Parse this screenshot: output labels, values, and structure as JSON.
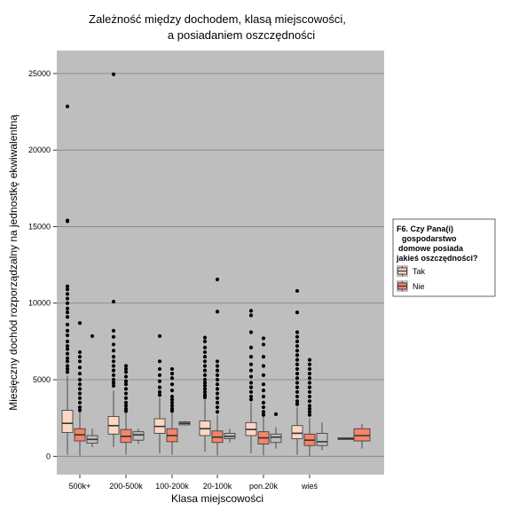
{
  "chart_data": {
    "type": "boxplot",
    "title_lines": [
      "Zależność między dochodem, klasą miejscowości,",
      "a posiadaniem oszczędności"
    ],
    "xlabel": "Klasa miejscowości",
    "ylabel": "Miesięczny dochód rozporządzalny na jednostkę ekwiwalentną",
    "ylim": [
      -1200,
      26500
    ],
    "yticks": [
      0,
      5000,
      10000,
      15000,
      20000,
      25000
    ],
    "categories": [
      "500k+",
      "200-500k",
      "100-200k",
      "20-100k",
      "pon.20k",
      "wieś",
      ""
    ],
    "legend": {
      "title_lines": [
        "F6. Czy Pana(i)",
        "gospodarstwo",
        "domowe posiada",
        "jakieś oszczędności?"
      ],
      "position": "right"
    },
    "series": [
      {
        "name": "Tak",
        "color": "#fcd7c6",
        "boxes": [
          {
            "category": "500k+",
            "q1": 1550,
            "median": 2150,
            "q3": 3000,
            "whisker_low": 100,
            "whisker_high": 5250,
            "outliers": [
              22850,
              15400,
              15350,
              11100,
              10900,
              10600,
              10300,
              10000,
              9650,
              9400,
              9100,
              8600,
              8200,
              7900,
              7500,
              7200,
              7000,
              6700,
              6400,
              6200,
              5900,
              5700,
              5500
            ]
          },
          {
            "category": "200-500k",
            "q1": 1450,
            "median": 2000,
            "q3": 2600,
            "whisker_low": 600,
            "whisker_high": 4300,
            "outliers": [
              24950,
              10100,
              8200,
              7800,
              7300,
              6900,
              6500,
              6200,
              5900,
              5600,
              5300,
              5000,
              4800,
              4600
            ]
          },
          {
            "category": "100-200k",
            "q1": 1500,
            "median": 1950,
            "q3": 2450,
            "whisker_low": 200,
            "whisker_high": 3800,
            "outliers": [
              7850,
              6200,
              5700,
              5300,
              4900,
              4500,
              4200,
              4000
            ]
          },
          {
            "category": "20-100k",
            "q1": 1350,
            "median": 1800,
            "q3": 2300,
            "whisker_low": 300,
            "whisker_high": 3700,
            "outliers": [
              7750,
              7500,
              7100,
              6800,
              6500,
              6200,
              5900,
              5600,
              5300,
              5000,
              4800,
              4600,
              4400,
              4200,
              4000,
              3850
            ]
          },
          {
            "category": "pon.20k",
            "q1": 1350,
            "median": 1750,
            "q3": 2200,
            "whisker_low": 200,
            "whisker_high": 3500,
            "outliers": [
              9500,
              9200,
              8100,
              7100,
              6500,
              6000,
              5600,
              5200,
              4800,
              4500,
              4200,
              3900,
              3700
            ]
          },
          {
            "category": "wieś",
            "q1": 1150,
            "median": 1500,
            "q3": 2000,
            "whisker_low": 100,
            "whisker_high": 3200,
            "outliers": [
              10800,
              9400,
              8100,
              7800,
              7500,
              7200,
              6900,
              6600,
              6300,
              6000,
              5700,
              5400,
              5100,
              4800,
              4500,
              4200,
              3900,
              3600,
              3400
            ]
          },
          {
            "category": "",
            "q1": 1100,
            "median": 1150,
            "q3": 1200,
            "whisker_low": 1100,
            "whisker_high": 1200,
            "outliers": []
          }
        ]
      },
      {
        "name": "Nie",
        "color": "#f4846a",
        "boxes": [
          {
            "category": "500k+",
            "q1": 1000,
            "median": 1400,
            "q3": 1800,
            "whisker_low": 50,
            "whisker_high": 2900,
            "outliers": [
              8700,
              6800,
              6500,
              6200,
              5800,
              5400,
              5000,
              4700,
              4400,
              4100,
              3800,
              3500,
              3200,
              3000
            ]
          },
          {
            "category": "200-500k",
            "q1": 900,
            "median": 1300,
            "q3": 1750,
            "whisker_low": 100,
            "whisker_high": 2850,
            "outliers": [
              5900,
              5700,
              5500,
              5200,
              4900,
              4700,
              4400,
              4100,
              3800,
              3500,
              3300,
              3100,
              2950
            ]
          },
          {
            "category": "100-200k",
            "q1": 950,
            "median": 1350,
            "q3": 1800,
            "whisker_low": 100,
            "whisker_high": 2800,
            "outliers": [
              5700,
              5400,
              5100,
              4700,
              4300,
              3900,
              3700,
              3500,
              3300,
              3100,
              2950
            ]
          },
          {
            "category": "20-100k",
            "q1": 900,
            "median": 1250,
            "q3": 1650,
            "whisker_low": 50,
            "whisker_high": 2700,
            "outliers": [
              11550,
              9450,
              6200,
              5900,
              5600,
              5300,
              5000,
              4700,
              4400,
              4100,
              3800,
              3500,
              3200,
              2900
            ]
          },
          {
            "category": "pon.20k",
            "q1": 800,
            "median": 1200,
            "q3": 1600,
            "whisker_low": 50,
            "whisker_high": 2600,
            "outliers": [
              7700,
              7300,
              6500,
              5900,
              5300,
              4700,
              4300,
              3900,
              3500,
              3200,
              2900,
              2700
            ]
          },
          {
            "category": "wieś",
            "q1": 700,
            "median": 1050,
            "q3": 1450,
            "whisker_low": 0,
            "whisker_high": 2500,
            "outliers": [
              6300,
              6000,
              5700,
              5400,
              5100,
              4800,
              4500,
              4200,
              3900,
              3600,
              3300,
              3100,
              2900,
              2700
            ]
          },
          {
            "category": "",
            "q1": 1000,
            "median": 1350,
            "q3": 1800,
            "whisker_low": 500,
            "whisker_high": 2100,
            "outliers": []
          }
        ]
      },
      {
        "name": "",
        "color": "#bfbfbf",
        "boxes": [
          {
            "category": "500k+",
            "q1": 850,
            "median": 1100,
            "q3": 1350,
            "whisker_low": 600,
            "whisker_high": 1800,
            "outliers": [
              7850
            ]
          },
          {
            "category": "200-500k",
            "q1": 1050,
            "median": 1400,
            "q3": 1600,
            "whisker_low": 800,
            "whisker_high": 1800,
            "outliers": []
          },
          {
            "category": "100-200k",
            "q1": 2050,
            "median": 2150,
            "q3": 2250,
            "whisker_low": 2000,
            "whisker_high": 2300,
            "outliers": []
          },
          {
            "category": "20-100k",
            "q1": 1150,
            "median": 1300,
            "q3": 1500,
            "whisker_low": 900,
            "whisker_high": 1800,
            "outliers": []
          },
          {
            "category": "pon.20k",
            "q1": 900,
            "median": 1250,
            "q3": 1450,
            "whisker_low": 500,
            "whisker_high": 1900,
            "outliers": [
              2750
            ]
          },
          {
            "category": "wieś",
            "q1": 700,
            "median": 950,
            "q3": 1500,
            "whisker_low": 400,
            "whisker_high": 2200,
            "outliers": []
          }
        ]
      }
    ],
    "colors": {
      "panel_background": "#bebebe",
      "grid": "#808080",
      "box_stroke": "#333333",
      "outlier": "#000000"
    }
  }
}
